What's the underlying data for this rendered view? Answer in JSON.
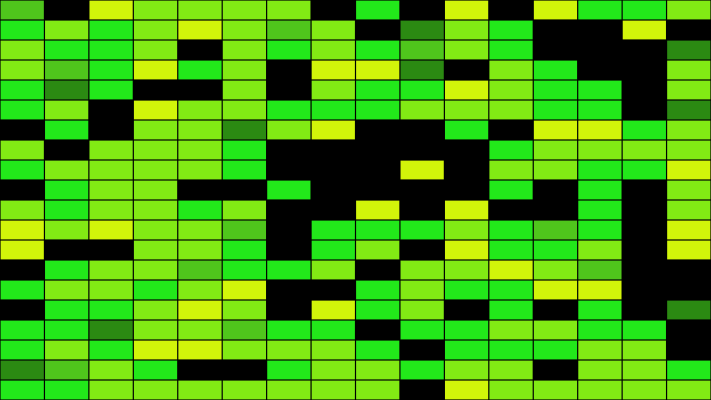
{
  "mosaic": {
    "columns": 16,
    "palette": {
      "k": "#000000",
      "g": "#22e81a",
      "l": "#82ea14",
      "y": "#d2f50a",
      "d": "#2b8a12",
      "m": "#4fc61c"
    },
    "rows": [
      "mkyllllkgkykyggl",
      "glglylmlkdlgkkyk",
      "lgglklglgmlgkkkd",
      "lmgyglkyydklgkkl",
      "gdgkklklggylggkl",
      "glkyllggglllggkd",
      "kgklldlykkgkyygl",
      "lklllgkkkkkgllll",
      "gllllgkkkykllggy",
      "kgllkkgkkkkgkgkl",
      "lgllglkkykykkgkl",
      "ylyllmkggglgmgky",
      "ykkllgkglkygglky",
      "kgllmgglkllylmkk",
      "gllglykkglggyykk",
      "kgglylkyglkgkgkd",
      "ggdllmggkggllggk",
      "glgyylllgkgggllk",
      "dmlgkkgllgllkllg",
      "gglllllllkylllll"
    ]
  }
}
